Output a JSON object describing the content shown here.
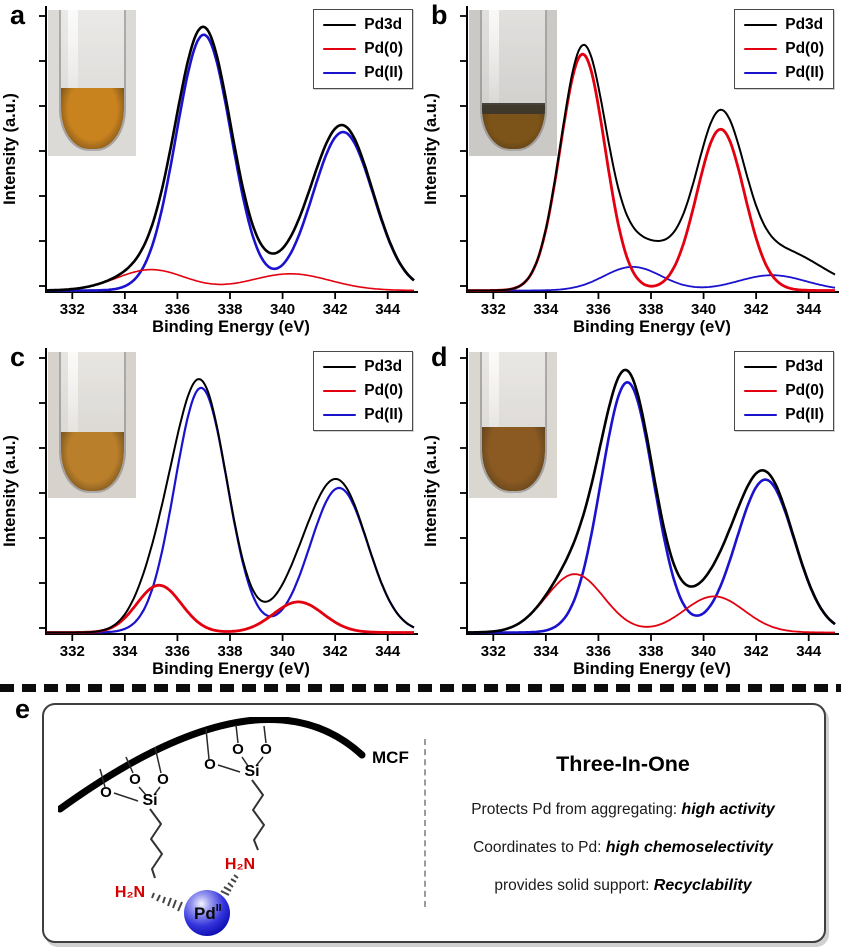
{
  "chart_data": [
    {
      "panel": "a",
      "type": "line",
      "xlabel": "Binding Energy (eV)",
      "ylabel": "Intensity (a.u.)",
      "x_range": [
        331,
        345
      ],
      "x_ticks": [
        332,
        334,
        336,
        338,
        340,
        342,
        344
      ],
      "y_ticks_unlabeled": 7,
      "legend_position": "top-right",
      "series": [
        {
          "name": "Pd3d",
          "color": "#000000",
          "lw": 2.6,
          "role": "envelope (sum of components)",
          "extra_peaks": []
        },
        {
          "name": "Pd(0)",
          "color": "#e3000f",
          "lw": 1.6,
          "peaks": [
            {
              "center": 335.0,
              "amp": 0.075,
              "sigma": 1.3
            },
            {
              "center": 340.3,
              "amp": 0.06,
              "sigma": 1.5
            }
          ]
        },
        {
          "name": "Pd(II)",
          "color": "#1a12cd",
          "lw": 2.6,
          "peaks": [
            {
              "center": 337.0,
              "amp": 0.92,
              "sigma": 1.05
            },
            {
              "center": 342.3,
              "amp": 0.57,
              "sigma": 1.15
            }
          ]
        }
      ],
      "inset": {
        "content": "photo of vial with orange solution",
        "bg": "#dcdad6",
        "liquid": "#c8821e",
        "fill": 0.42,
        "film": null
      }
    },
    {
      "panel": "b",
      "type": "line",
      "xlabel": "Binding Energy (eV)",
      "ylabel": "Intensity (a.u.)",
      "x_range": [
        331,
        345
      ],
      "x_ticks": [
        332,
        334,
        336,
        338,
        340,
        342,
        344
      ],
      "y_ticks_unlabeled": 7,
      "legend_position": "top-right",
      "series": [
        {
          "name": "Pd3d",
          "color": "#000000",
          "lw": 2.0,
          "role": "envelope (sum of components)",
          "extra_peaks": [
            {
              "center": 338.4,
              "amp": 0.1,
              "sigma": 1.5
            },
            {
              "center": 343.3,
              "amp": 0.09,
              "sigma": 1.5
            }
          ]
        },
        {
          "name": "Pd(0)",
          "color": "#e3000f",
          "lw": 2.8,
          "peaks": [
            {
              "center": 335.4,
              "amp": 0.85,
              "sigma": 0.85
            },
            {
              "center": 340.65,
              "amp": 0.58,
              "sigma": 0.9
            }
          ]
        },
        {
          "name": "Pd(II)",
          "color": "#1a12cd",
          "lw": 1.8,
          "peaks": [
            {
              "center": 337.3,
              "amp": 0.085,
              "sigma": 1.1
            },
            {
              "center": 342.6,
              "amp": 0.055,
              "sigma": 1.3
            }
          ]
        }
      ],
      "inset": {
        "content": "photo of vial with dark brown solution and black film",
        "bg": "#cbc9c5",
        "liquid": "#7c5318",
        "fill": 0.3,
        "film": "#3b362e"
      }
    },
    {
      "panel": "c",
      "type": "line",
      "xlabel": "Binding Energy (eV)",
      "ylabel": "Intensity (a.u.)",
      "x_range": [
        331,
        345
      ],
      "x_ticks": [
        332,
        334,
        336,
        338,
        340,
        342,
        344
      ],
      "y_ticks_unlabeled": 7,
      "legend_position": "top-right",
      "series": [
        {
          "name": "Pd3d",
          "color": "#000000",
          "lw": 2.0,
          "role": "envelope (sum of components)",
          "extra_peaks": []
        },
        {
          "name": "Pd(0)",
          "color": "#e3000f",
          "lw": 2.8,
          "peaks": [
            {
              "center": 335.3,
              "amp": 0.17,
              "sigma": 0.85
            },
            {
              "center": 340.6,
              "amp": 0.11,
              "sigma": 0.95
            }
          ]
        },
        {
          "name": "Pd(II)",
          "color": "#1a12cd",
          "lw": 2.2,
          "peaks": [
            {
              "center": 336.9,
              "amp": 0.88,
              "sigma": 1.0
            },
            {
              "center": 342.15,
              "amp": 0.52,
              "sigma": 1.1
            }
          ]
        }
      ],
      "inset": {
        "content": "photo of vial with amber solution",
        "bg": "#d7d3cc",
        "liquid": "#b97f2a",
        "fill": 0.4,
        "film": null
      }
    },
    {
      "panel": "d",
      "type": "line",
      "xlabel": "Binding Energy (eV)",
      "ylabel": "Intensity (a.u.)",
      "x_range": [
        331,
        345
      ],
      "x_ticks": [
        332,
        334,
        336,
        338,
        340,
        342,
        344
      ],
      "y_ticks_unlabeled": 7,
      "legend_position": "top-right",
      "series": [
        {
          "name": "Pd3d",
          "color": "#000000",
          "lw": 2.6,
          "role": "envelope (sum of components)",
          "extra_peaks": []
        },
        {
          "name": "Pd(0)",
          "color": "#e3000f",
          "lw": 1.8,
          "peaks": [
            {
              "center": 335.1,
              "amp": 0.21,
              "sigma": 1.1
            },
            {
              "center": 340.4,
              "amp": 0.13,
              "sigma": 1.15
            }
          ]
        },
        {
          "name": "Pd(II)",
          "color": "#1a12cd",
          "lw": 2.6,
          "peaks": [
            {
              "center": 337.1,
              "amp": 0.9,
              "sigma": 1.0
            },
            {
              "center": 342.35,
              "amp": 0.55,
              "sigma": 1.1
            }
          ]
        }
      ],
      "inset": {
        "content": "photo of vial with brown solution",
        "bg": "#dad6d0",
        "liquid": "#8a5a22",
        "fill": 0.44,
        "film": null
      }
    }
  ],
  "scheme": {
    "panel": "e",
    "support_label": "MCF",
    "silicon_label": "Si",
    "oxygen_label": "O",
    "amine_label": "H₂N",
    "metal_label": "Pd",
    "metal_oxidation_state": "II",
    "colors": {
      "amine": "#d40000",
      "metal_sphere": "#2222d4",
      "support_arc": "#000000"
    },
    "three_in_one": {
      "title": "Three-In-One",
      "points": [
        {
          "lead": "Protects Pd from aggregating: ",
          "emph": "high activity"
        },
        {
          "lead": "Coordinates to Pd: ",
          "emph": "high chemoselectivity"
        },
        {
          "lead": "provides solid support: ",
          "emph": "Recyclability"
        }
      ]
    }
  }
}
